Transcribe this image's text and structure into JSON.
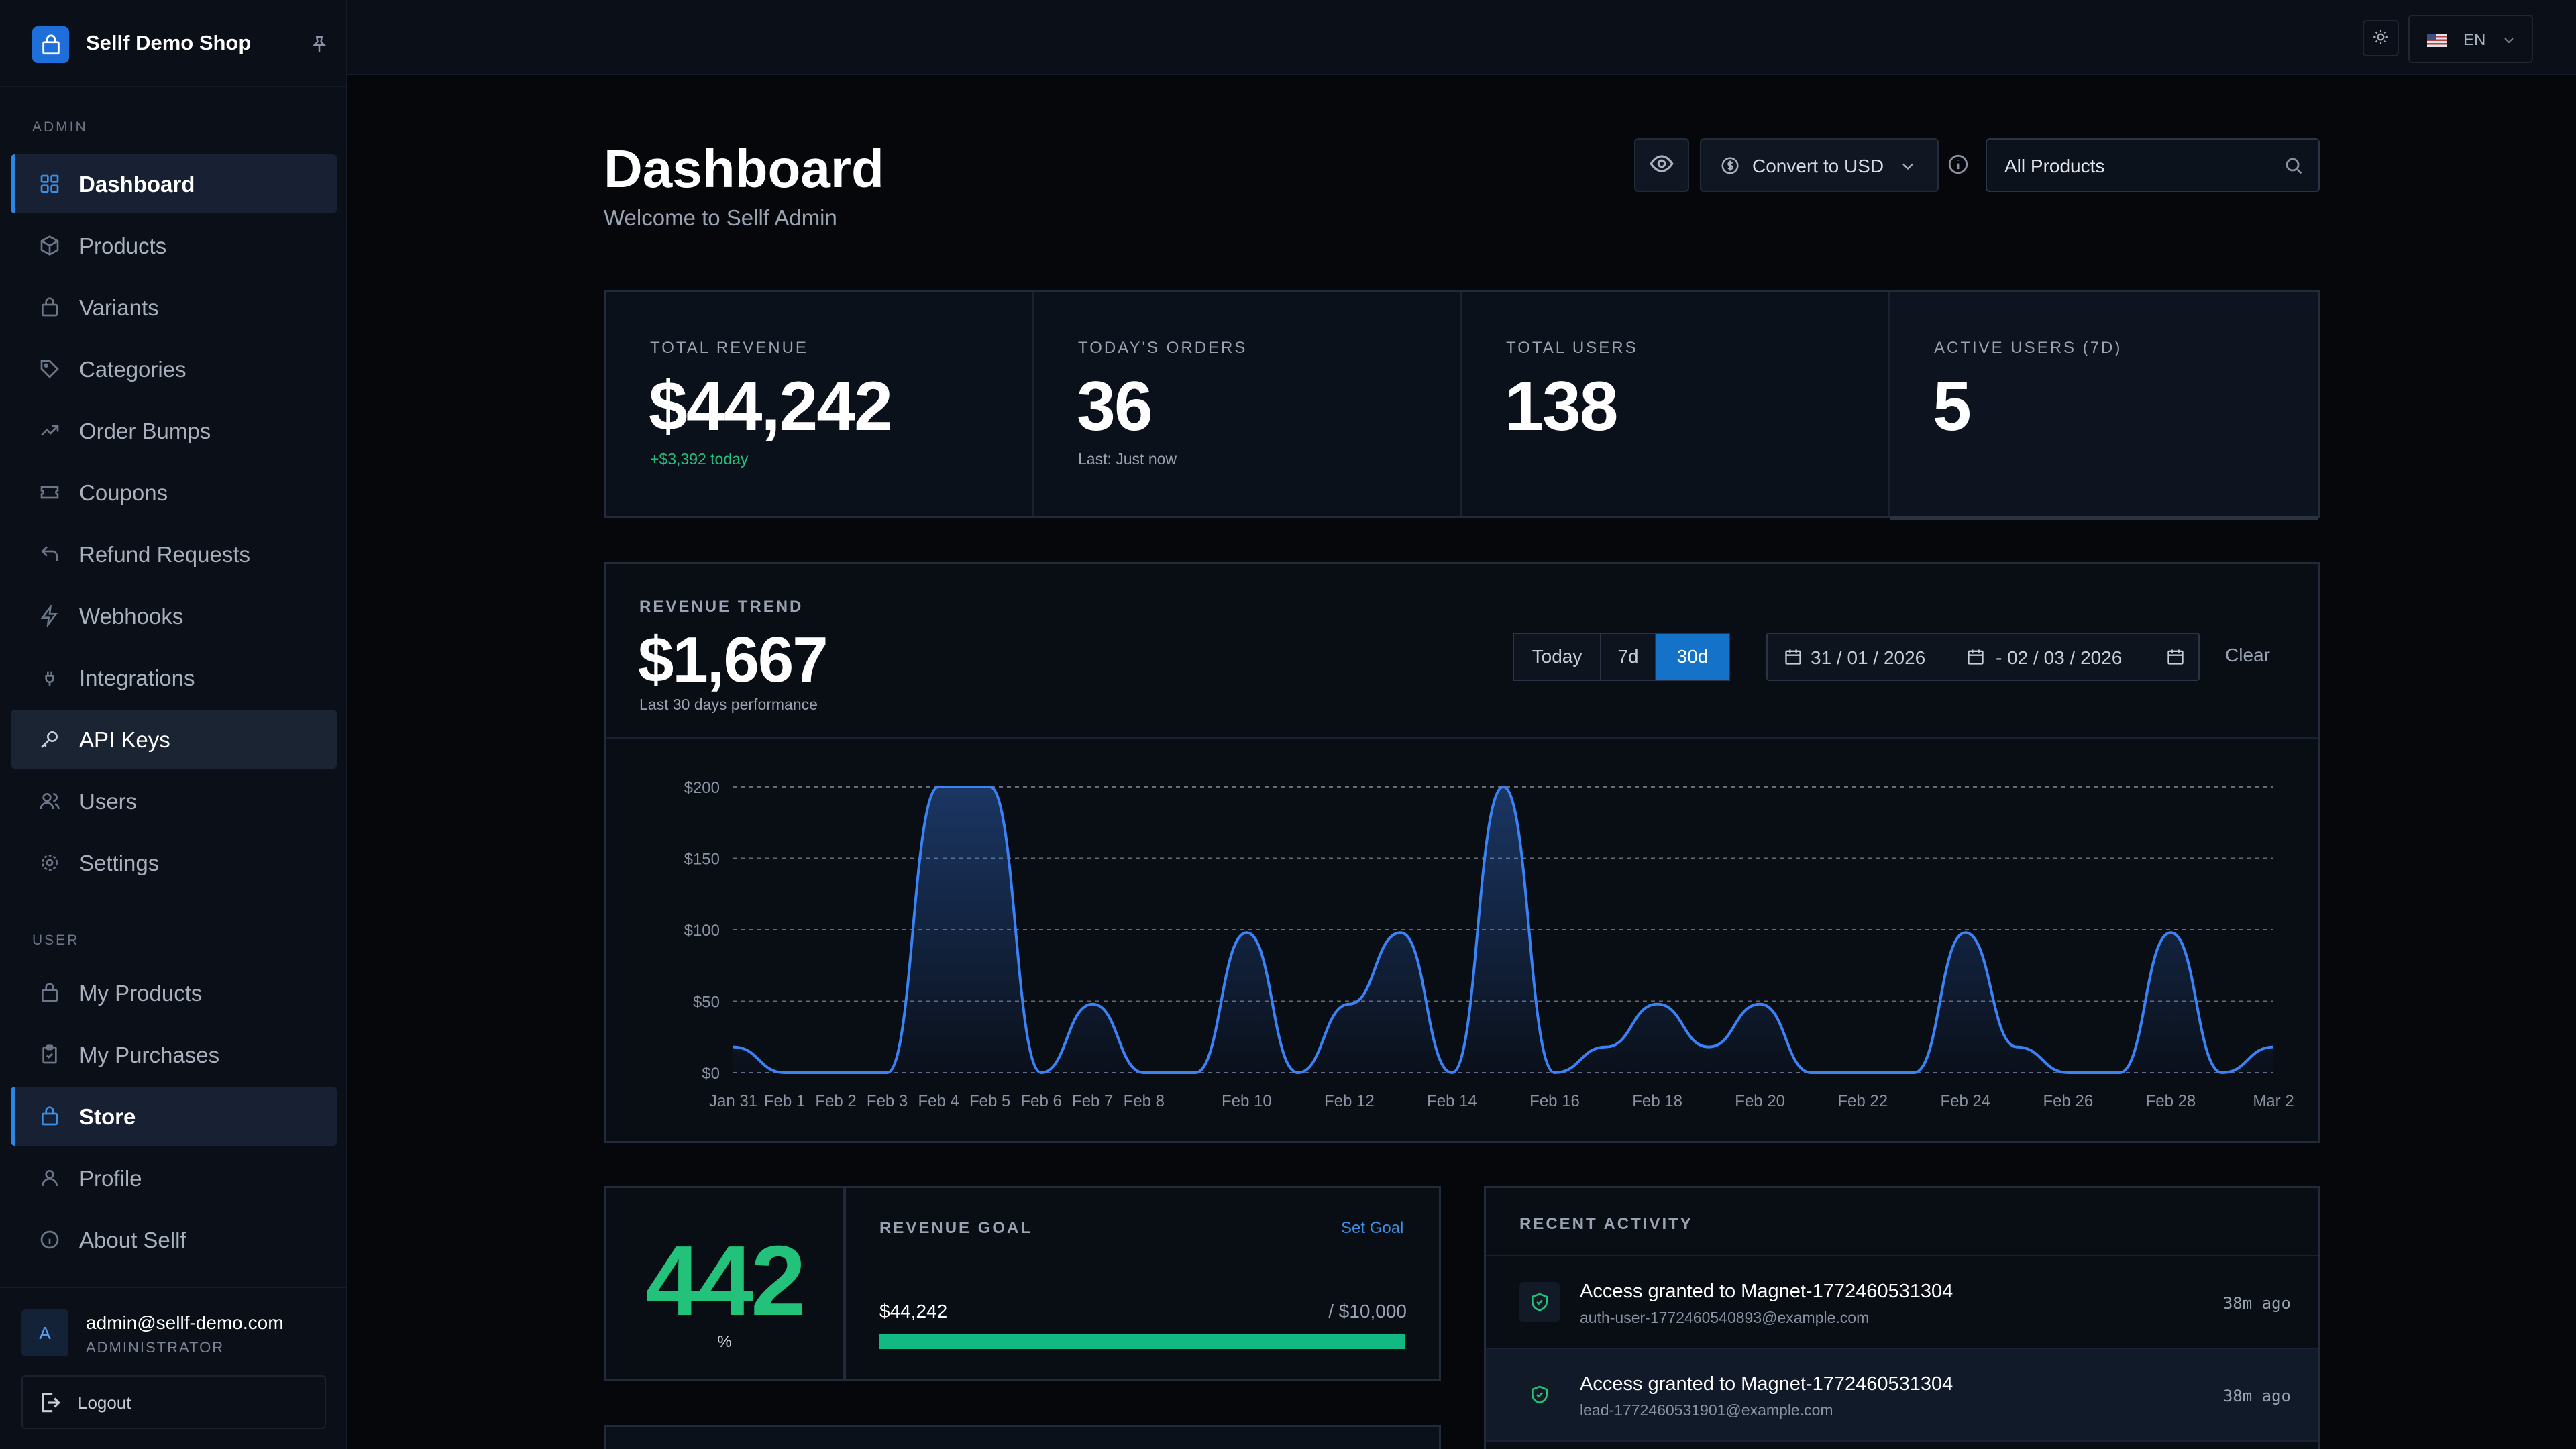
{
  "app": {
    "shop_name": "Sellf Demo Shop",
    "language": "EN"
  },
  "sidebar": {
    "admin_label": "ADMIN",
    "admin_items": [
      {
        "label": "Dashboard",
        "icon": "grid-icon"
      },
      {
        "label": "Products",
        "icon": "box-icon"
      },
      {
        "label": "Variants",
        "icon": "bag-icon"
      },
      {
        "label": "Categories",
        "icon": "tag-icon"
      },
      {
        "label": "Order Bumps",
        "icon": "trend-icon"
      },
      {
        "label": "Coupons",
        "icon": "ticket-icon"
      },
      {
        "label": "Refund Requests",
        "icon": "undo-icon"
      },
      {
        "label": "Webhooks",
        "icon": "bolt-icon"
      },
      {
        "label": "Integrations",
        "icon": "plug-icon"
      },
      {
        "label": "API Keys",
        "icon": "key-icon"
      },
      {
        "label": "Users",
        "icon": "users-icon"
      },
      {
        "label": "Settings",
        "icon": "gear-icon"
      }
    ],
    "user_label": "USER",
    "user_items": [
      {
        "label": "My Products",
        "icon": "bag-icon"
      },
      {
        "label": "My Purchases",
        "icon": "clipboard-icon"
      },
      {
        "label": "Store",
        "icon": "bag-icon"
      },
      {
        "label": "Profile",
        "icon": "person-icon"
      },
      {
        "label": "About Sellf",
        "icon": "info-icon"
      }
    ],
    "user": {
      "initial": "A",
      "email": "admin@sellf-demo.com",
      "role": "ADMINISTRATOR",
      "logout_label": "Logout"
    }
  },
  "header": {
    "title": "Dashboard",
    "subtitle": "Welcome to Sellf Admin",
    "convert_label": "Convert to USD",
    "product_filter": "All Products"
  },
  "stats": [
    {
      "label": "TOTAL REVENUE",
      "value": "$44,242",
      "sub": "+$3,392 today"
    },
    {
      "label": "TODAY'S ORDERS",
      "value": "36",
      "sub": "Last: Just now"
    },
    {
      "label": "TOTAL USERS",
      "value": "138",
      "sub": ""
    },
    {
      "label": "ACTIVE USERS (7D)",
      "value": "5",
      "sub": ""
    }
  ],
  "trend": {
    "label": "REVENUE TREND",
    "value": "$1,667",
    "sub": "Last 30 days performance",
    "ranges": [
      "Today",
      "7d",
      "30d"
    ],
    "active_range": "30d",
    "date_from": "31 / 01 / 2026",
    "date_to": "- 02 / 03 / 2026",
    "clear_label": "Clear"
  },
  "chart_data": {
    "type": "area",
    "x": [
      "Jan 31",
      "Feb 1",
      "Feb 2",
      "Feb 3",
      "Feb 4",
      "Feb 5",
      "Feb 6",
      "Feb 7",
      "Feb 8",
      "Feb 9",
      "Feb 10",
      "Feb 11",
      "Feb 12",
      "Feb 13",
      "Feb 14",
      "Feb 15",
      "Feb 16",
      "Feb 17",
      "Feb 18",
      "Feb 19",
      "Feb 20",
      "Feb 21",
      "Feb 22",
      "Feb 23",
      "Feb 24",
      "Feb 25",
      "Feb 26",
      "Feb 27",
      "Feb 28",
      "Mar 1",
      "Mar 2"
    ],
    "x_tick_labels": [
      "Jan 31",
      "Feb 1",
      "Feb 2",
      "Feb 3",
      "Feb 4",
      "Feb 5",
      "Feb 6",
      "Feb 7",
      "Feb 8",
      "Feb 10",
      "Feb 12",
      "Feb 14",
      "Feb 16",
      "Feb 18",
      "Feb 20",
      "Feb 22",
      "Feb 24",
      "Feb 26",
      "Feb 28",
      "Mar 2"
    ],
    "series": [
      {
        "values": [
          18,
          0,
          0,
          0,
          200,
          200,
          0,
          48,
          0,
          0,
          98,
          0,
          48,
          98,
          0,
          200,
          0,
          18,
          48,
          18,
          48,
          0,
          0,
          0,
          98,
          18,
          0,
          0,
          98,
          0,
          18
        ]
      }
    ],
    "y_ticks": [
      "$0",
      "$50",
      "$100",
      "$150",
      "$200"
    ],
    "ylim": [
      0,
      200
    ],
    "grid": true,
    "colors": {
      "line": "#3b82f6",
      "grid": "#7b8495"
    }
  },
  "goal": {
    "percent": "442",
    "percent_unit": "%",
    "label": "REVENUE GOAL",
    "set_goal_label": "Set Goal",
    "current": "$44,242",
    "target": "/ $10,000",
    "progress": 1.0
  },
  "activity": {
    "title": "RECENT ACTIVITY",
    "items": [
      {
        "title": "Access granted to Magnet-1772460531304",
        "sub": "auth-user-1772460540893@example.com",
        "time": "38m ago"
      },
      {
        "title": "Access granted to Magnet-1772460531304",
        "sub": "lead-1772460531901@example.com",
        "time": "38m ago"
      }
    ]
  }
}
